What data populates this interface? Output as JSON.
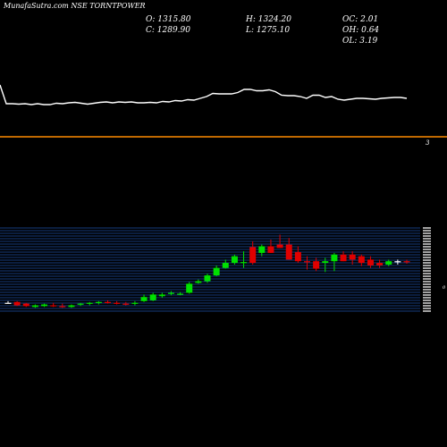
{
  "header": {
    "title": "MunafaSutra.com NSE TORNTPOWER",
    "open": "O: 1315.80",
    "high": "H: 1324.20",
    "oc": "OC: 2.01",
    "close": "C: 1289.90",
    "low": "L: 1275.10",
    "oh": "OH: 0.64",
    "ol": "OL: 3.19"
  },
  "volume_label": "3",
  "side_label": "0",
  "colors": {
    "background": "#000000",
    "up": "#00e000",
    "down": "#e00000",
    "neutral": "#ffffff",
    "divider": "#ff8c00",
    "grid": "#1e4fa8"
  },
  "chart_data": [
    {
      "type": "line",
      "name": "upper-indicator",
      "values": [
        1.0,
        0.58,
        0.58,
        0.57,
        0.58,
        0.56,
        0.58,
        0.56,
        0.56,
        0.59,
        0.58,
        0.6,
        0.61,
        0.59,
        0.57,
        0.59,
        0.61,
        0.62,
        0.6,
        0.62,
        0.61,
        0.62,
        0.6,
        0.6,
        0.61,
        0.6,
        0.63,
        0.62,
        0.65,
        0.64,
        0.67,
        0.66,
        0.7,
        0.74,
        0.81,
        0.8,
        0.8,
        0.8,
        0.83,
        0.9,
        0.9,
        0.87,
        0.87,
        0.89,
        0.85,
        0.77,
        0.76,
        0.76,
        0.74,
        0.7,
        0.77,
        0.77,
        0.72,
        0.74,
        0.68,
        0.66,
        0.68,
        0.7,
        0.7,
        0.69,
        0.68,
        0.7,
        0.71,
        0.72,
        0.72,
        0.7
      ],
      "ylim": [
        0,
        1
      ]
    },
    {
      "type": "candlestick",
      "name": "price",
      "open": [
        0.1,
        0.11,
        0.09,
        0.05,
        0.06,
        0.07,
        0.06,
        0.05,
        0.08,
        0.09,
        0.1,
        0.11,
        0.1,
        0.09,
        0.09,
        0.12,
        0.13,
        0.18,
        0.21,
        0.2,
        0.22,
        0.34,
        0.36,
        0.43,
        0.52,
        0.58,
        0.58,
        0.77,
        0.7,
        0.78,
        0.8,
        0.8,
        0.71,
        0.6,
        0.6,
        0.58,
        0.6,
        0.68,
        0.68,
        0.66,
        0.62,
        0.58,
        0.56,
        0.6,
        0.6
      ],
      "high": [
        0.12,
        0.12,
        0.1,
        0.08,
        0.09,
        0.1,
        0.09,
        0.08,
        0.1,
        0.11,
        0.12,
        0.13,
        0.12,
        0.11,
        0.12,
        0.2,
        0.22,
        0.22,
        0.24,
        0.23,
        0.35,
        0.38,
        0.45,
        0.55,
        0.62,
        0.68,
        0.72,
        0.84,
        0.8,
        0.86,
        0.92,
        0.88,
        0.78,
        0.66,
        0.64,
        0.64,
        0.7,
        0.72,
        0.72,
        0.68,
        0.66,
        0.62,
        0.62,
        0.62,
        0.62
      ],
      "low": [
        0.09,
        0.06,
        0.05,
        0.04,
        0.05,
        0.05,
        0.04,
        0.04,
        0.06,
        0.07,
        0.08,
        0.09,
        0.08,
        0.07,
        0.07,
        0.11,
        0.12,
        0.16,
        0.19,
        0.19,
        0.21,
        0.33,
        0.34,
        0.42,
        0.51,
        0.56,
        0.52,
        0.56,
        0.66,
        0.7,
        0.76,
        0.62,
        0.58,
        0.5,
        0.48,
        0.47,
        0.48,
        0.6,
        0.56,
        0.54,
        0.52,
        0.52,
        0.54,
        0.56,
        0.57
      ],
      "close": [
        0.1,
        0.07,
        0.06,
        0.07,
        0.08,
        0.06,
        0.05,
        0.07,
        0.09,
        0.1,
        0.11,
        0.1,
        0.09,
        0.08,
        0.1,
        0.17,
        0.2,
        0.2,
        0.22,
        0.21,
        0.33,
        0.36,
        0.43,
        0.52,
        0.58,
        0.66,
        0.59,
        0.58,
        0.78,
        0.7,
        0.76,
        0.62,
        0.6,
        0.59,
        0.51,
        0.6,
        0.68,
        0.6,
        0.62,
        0.58,
        0.55,
        0.55,
        0.6,
        0.6,
        0.59
      ]
    }
  ]
}
